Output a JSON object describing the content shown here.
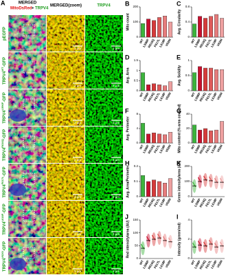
{
  "image_panel": {
    "letter": "A",
    "header_merged": "MERGED",
    "header_mito": "MitoDsRed",
    "header_plus": "+",
    "header_trpv4": "TRPV4",
    "header_zoom": "MERGED(zoom)",
    "header_green": "TRPV4",
    "scale_bar": "2 µm",
    "rows": [
      {
        "base": "pEGFP",
        "sup": "",
        "suffix": ""
      },
      {
        "base": "TRPV4",
        "sup": "WT",
        "suffix": "-GFP"
      },
      {
        "base": "TRPV4",
        "sup": "L596P",
        "suffix": "-GFP"
      },
      {
        "base": "TRPV4",
        "sup": "R616Q",
        "suffix": "-GFP"
      },
      {
        "base": "TRPV4",
        "sup": "F617L",
        "suffix": "-GFP"
      },
      {
        "base": "TRPV4",
        "sup": "L618P",
        "suffix": "-GFP"
      },
      {
        "base": "TRPV4",
        "sup": "V620I",
        "suffix": "-GFP"
      }
    ]
  },
  "category_colors": [
    "#3cb43c",
    "#c8102e",
    "#d63a3a",
    "#de5a5a",
    "#e67c7c",
    "#eea0a0"
  ],
  "chart_data": [
    {
      "type": "bar",
      "letter": "B",
      "ylabel": "Mito count",
      "categories": [
        "WT",
        "L596P",
        "R616Q",
        "F617L",
        "L618P",
        "V620I"
      ],
      "values": [
        90,
        120,
        110,
        130,
        140,
        100
      ],
      "ylim": [
        0,
        200
      ],
      "yticks": [
        0,
        100,
        200
      ]
    },
    {
      "type": "bar",
      "letter": "C",
      "ylabel": "Avg. Circularity",
      "categories": [
        "WT",
        "L596P",
        "R616Q",
        "F617L",
        "L618P",
        "V620I"
      ],
      "values": [
        0.35,
        0.55,
        0.5,
        0.55,
        0.6,
        0.5
      ],
      "ylim": [
        0,
        0.8
      ],
      "yticks": [
        0,
        0.4,
        0.8
      ]
    },
    {
      "type": "bar",
      "letter": "D",
      "ylabel": "Avg. Area",
      "categories": [
        "WT",
        "L596P",
        "R616Q",
        "F617L",
        "L618P",
        "V620I"
      ],
      "values": [
        0.9,
        0.3,
        0.35,
        0.3,
        0.25,
        0.45
      ],
      "ylim": [
        0,
        1.5
      ],
      "yticks": [
        0,
        0.5,
        1,
        1.5
      ]
    },
    {
      "type": "bar",
      "letter": "E",
      "ylabel": "Avg. Solidity",
      "categories": [
        "WT",
        "L596P",
        "R616Q",
        "F617L",
        "L618P",
        "V620I"
      ],
      "values": [
        0.6,
        0.8,
        0.75,
        0.75,
        0.7,
        0.7
      ],
      "ylim": [
        0,
        1
      ],
      "yticks": [
        0,
        0.5,
        1
      ]
    },
    {
      "type": "bar",
      "letter": "F",
      "ylabel": "Avg. Perimeter",
      "categories": [
        "WT",
        "L596P",
        "R616Q",
        "F617L",
        "L618P",
        "V620I"
      ],
      "values": [
        5.5,
        2.5,
        2.8,
        2.5,
        2.3,
        3
      ],
      "ylim": [
        0,
        8
      ],
      "yticks": [
        0,
        4,
        8
      ]
    },
    {
      "type": "bar",
      "letter": "G",
      "ylabel": "Mito content (% area covered)",
      "categories": [
        "WT",
        "L596P",
        "R616Q",
        "F617L",
        "L618P",
        "V620I"
      ],
      "values": [
        25,
        18,
        20,
        17,
        18,
        30
      ],
      "ylim": [
        0,
        40
      ],
      "yticks": [
        0,
        20,
        40
      ]
    },
    {
      "type": "bar",
      "letter": "H",
      "ylabel": "Avg. Area/Perimeter",
      "categories": [
        "WT",
        "L596P",
        "R616Q",
        "F617L",
        "L618P",
        "V620I"
      ],
      "values": [
        0.14,
        0.1,
        0.11,
        0.1,
        0.09,
        0.12
      ],
      "ylim": [
        0,
        0.2
      ],
      "yticks": [
        0,
        0.1,
        0.2
      ]
    },
    {
      "type": "dot",
      "letter": "I",
      "ylabel": "Intensity (green/red)",
      "categories": [
        "WT",
        "L596P",
        "R616Q",
        "F617L",
        "L618P",
        "V620I"
      ],
      "values": [
        1.2,
        1.4,
        1.3,
        1.5,
        1.2,
        1.3
      ],
      "ylim": [
        0,
        4
      ],
      "yticks": [
        0,
        2,
        4
      ]
    },
    {
      "type": "dot",
      "letter": "J",
      "ylabel": "Red intensity/area (AU)",
      "categories": [
        "WT",
        "L596P",
        "R616Q",
        "F617L",
        "L618P",
        "V620I"
      ],
      "values": [
        40,
        70,
        75,
        80,
        70,
        65
      ],
      "ylim": [
        0,
        150
      ],
      "yticks": [
        0,
        50,
        100,
        150
      ]
    },
    {
      "type": "dot",
      "letter": "K",
      "ylabel": "Green intensity/area (AU)",
      "categories": [
        "WT",
        "L596P",
        "R616Q",
        "F617L",
        "L618P",
        "V620I"
      ],
      "values": [
        70,
        100,
        110,
        105,
        95,
        95
      ],
      "ylim": [
        0,
        200
      ],
      "yticks": [
        0,
        100,
        200
      ]
    }
  ]
}
